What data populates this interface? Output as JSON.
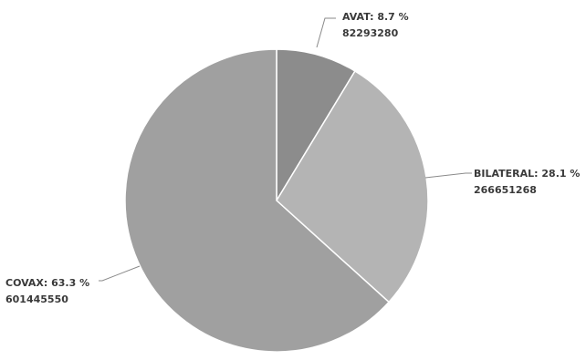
{
  "chart_data": {
    "type": "pie",
    "start_angle": "12 o'clock",
    "direction": "clockwise",
    "slices": [
      {
        "name": "AVAT",
        "percent": "8.7 %",
        "value": 82293280,
        "value_label": "82293280",
        "color": "#8c8c8c"
      },
      {
        "name": "BILATERAL",
        "percent": "28.1 %",
        "value": 266651268,
        "value_label": "266651268",
        "color": "#b4b4b4"
      },
      {
        "name": "COVAX",
        "percent": "63.3 %",
        "value": 601445550,
        "value_label": "601445550",
        "color": "#a0a0a0"
      }
    ]
  }
}
